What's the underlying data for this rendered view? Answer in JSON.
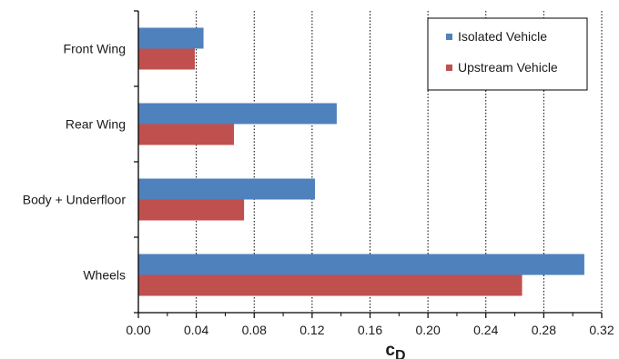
{
  "chart_data": {
    "type": "bar",
    "orientation": "horizontal",
    "categories": [
      "Front Wing",
      "Rear Wing",
      "Body + Underfloor",
      "Wheels"
    ],
    "series": [
      {
        "name": "Isolated Vehicle",
        "color": "#4f81bd",
        "values": [
          0.045,
          0.137,
          0.122,
          0.308
        ]
      },
      {
        "name": "Upstream Vehicle",
        "color": "#c0504d",
        "values": [
          0.039,
          0.066,
          0.073,
          0.265
        ]
      }
    ],
    "xlim": [
      0,
      0.32
    ],
    "xticks": [
      "0.00",
      "0.04",
      "0.08",
      "0.12",
      "0.16",
      "0.20",
      "0.24",
      "0.28",
      "0.32"
    ],
    "xlabel": {
      "main": "c",
      "sub": "D"
    },
    "ylabel": "",
    "title": "",
    "grid": "vertical dotted",
    "legend_position": "top-right"
  }
}
